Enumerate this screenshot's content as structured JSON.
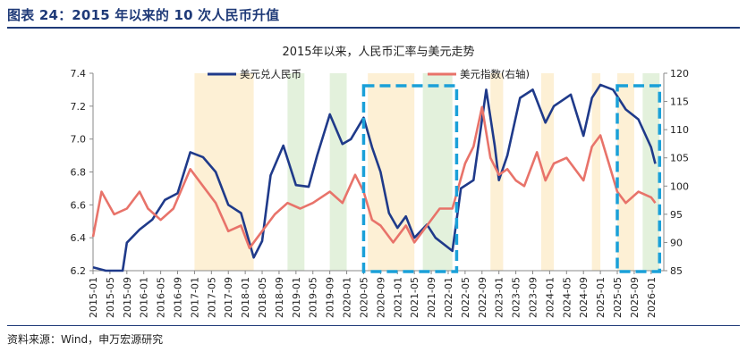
{
  "figure": {
    "title": "图表 24：2015 年以来的 10 次人民币升值",
    "source": "资料来源：Wind，申万宏源研究"
  },
  "colors": {
    "usdcny": "#1f3a8a",
    "dxy": "#e8736a",
    "band_orange": "#fdf0d5",
    "band_green": "#e3f1dc",
    "box": "#1aa0d8",
    "header": "#1f3a78"
  },
  "chart_data": {
    "type": "line",
    "title": "2015年以来，人民币汇率与美元走势",
    "x_tick_labels": [
      "2015-01",
      "2015-05",
      "2015-09",
      "2016-01",
      "2016-05",
      "2016-09",
      "2017-01",
      "2017-05",
      "2017-09",
      "2018-01",
      "2018-05",
      "2018-09",
      "2019-01",
      "2019-05",
      "2019-09",
      "2020-01",
      "2020-05",
      "2020-09",
      "2021-01",
      "2021-05",
      "2021-09",
      "2022-01",
      "2022-05",
      "2022-09",
      "2023-01",
      "2023-05",
      "2023-09",
      "2024-01",
      "2024-05",
      "2024-09",
      "2025-01",
      "2025-05",
      "2025-09",
      "2026-01"
    ],
    "left_axis": {
      "ylim": [
        6.2,
        7.4
      ],
      "ticks": [
        "6.2",
        "6.4",
        "6.6",
        "6.8",
        "7.0",
        "7.2",
        "7.4"
      ]
    },
    "right_axis": {
      "label": "右轴",
      "ylim": [
        85,
        120
      ],
      "ticks": [
        "85",
        "90",
        "95",
        "100",
        "105",
        "110",
        "115",
        "120"
      ]
    },
    "legend": {
      "placement": "top"
    },
    "series": [
      {
        "name": "美元兑人民币",
        "axis": "left",
        "points": [
          [
            "2015-01",
            6.22
          ],
          [
            "2015-04",
            6.2
          ],
          [
            "2015-08",
            6.2
          ],
          [
            "2015-09",
            6.37
          ],
          [
            "2015-12",
            6.45
          ],
          [
            "2016-03",
            6.51
          ],
          [
            "2016-06",
            6.63
          ],
          [
            "2016-09",
            6.67
          ],
          [
            "2016-12",
            6.92
          ],
          [
            "2017-03",
            6.89
          ],
          [
            "2017-06",
            6.8
          ],
          [
            "2017-09",
            6.6
          ],
          [
            "2017-12",
            6.55
          ],
          [
            "2018-03",
            6.28
          ],
          [
            "2018-05",
            6.38
          ],
          [
            "2018-07",
            6.78
          ],
          [
            "2018-10",
            6.96
          ],
          [
            "2019-01",
            6.72
          ],
          [
            "2019-04",
            6.71
          ],
          [
            "2019-06",
            6.9
          ],
          [
            "2019-09",
            7.15
          ],
          [
            "2019-12",
            6.97
          ],
          [
            "2020-02",
            7.0
          ],
          [
            "2020-05",
            7.13
          ],
          [
            "2020-07",
            6.95
          ],
          [
            "2020-09",
            6.8
          ],
          [
            "2020-11",
            6.55
          ],
          [
            "2021-01",
            6.46
          ],
          [
            "2021-03",
            6.53
          ],
          [
            "2021-05",
            6.4
          ],
          [
            "2021-08",
            6.48
          ],
          [
            "2021-10",
            6.4
          ],
          [
            "2022-02",
            6.32
          ],
          [
            "2022-04",
            6.7
          ],
          [
            "2022-07",
            6.75
          ],
          [
            "2022-10",
            7.3
          ],
          [
            "2022-12",
            6.96
          ],
          [
            "2023-01",
            6.75
          ],
          [
            "2023-03",
            6.9
          ],
          [
            "2023-06",
            7.25
          ],
          [
            "2023-09",
            7.3
          ],
          [
            "2023-12",
            7.1
          ],
          [
            "2024-02",
            7.2
          ],
          [
            "2024-06",
            7.27
          ],
          [
            "2024-09",
            7.02
          ],
          [
            "2024-11",
            7.25
          ],
          [
            "2025-01",
            7.33
          ],
          [
            "2025-04",
            7.3
          ],
          [
            "2025-07",
            7.18
          ],
          [
            "2025-10",
            7.12
          ],
          [
            "2026-01",
            6.95
          ],
          [
            "2026-02",
            6.85
          ]
        ]
      },
      {
        "name": "美元指数(右轴)",
        "axis": "right",
        "points": [
          [
            "2015-01",
            91
          ],
          [
            "2015-03",
            99
          ],
          [
            "2015-06",
            95
          ],
          [
            "2015-09",
            96
          ],
          [
            "2015-12",
            99
          ],
          [
            "2016-02",
            96
          ],
          [
            "2016-05",
            94
          ],
          [
            "2016-08",
            96
          ],
          [
            "2016-12",
            103
          ],
          [
            "2017-03",
            100
          ],
          [
            "2017-06",
            97
          ],
          [
            "2017-09",
            92
          ],
          [
            "2017-12",
            93
          ],
          [
            "2018-02",
            89
          ],
          [
            "2018-05",
            92
          ],
          [
            "2018-08",
            95
          ],
          [
            "2018-11",
            97
          ],
          [
            "2019-02",
            96
          ],
          [
            "2019-05",
            97
          ],
          [
            "2019-09",
            99
          ],
          [
            "2019-12",
            97
          ],
          [
            "2020-03",
            102
          ],
          [
            "2020-05",
            99
          ],
          [
            "2020-07",
            94
          ],
          [
            "2020-09",
            93
          ],
          [
            "2020-12",
            90
          ],
          [
            "2021-03",
            93
          ],
          [
            "2021-05",
            90
          ],
          [
            "2021-08",
            93
          ],
          [
            "2021-11",
            96
          ],
          [
            "2022-02",
            96
          ],
          [
            "2022-05",
            104
          ],
          [
            "2022-07",
            107
          ],
          [
            "2022-09",
            114
          ],
          [
            "2022-11",
            105
          ],
          [
            "2023-01",
            102
          ],
          [
            "2023-03",
            103
          ],
          [
            "2023-05",
            101
          ],
          [
            "2023-07",
            100
          ],
          [
            "2023-10",
            106
          ],
          [
            "2023-12",
            101
          ],
          [
            "2024-02",
            104
          ],
          [
            "2024-05",
            105
          ],
          [
            "2024-09",
            101
          ],
          [
            "2024-11",
            107
          ],
          [
            "2025-01",
            109
          ],
          [
            "2025-03",
            104
          ],
          [
            "2025-05",
            99
          ],
          [
            "2025-07",
            97
          ],
          [
            "2025-10",
            99
          ],
          [
            "2026-01",
            98
          ],
          [
            "2026-02",
            97
          ]
        ]
      }
    ],
    "shaded_periods": [
      {
        "start": "2017-01",
        "end": "2018-03",
        "color": "orange"
      },
      {
        "start": "2018-11",
        "end": "2019-03",
        "color": "green"
      },
      {
        "start": "2019-09",
        "end": "2020-01",
        "color": "green"
      },
      {
        "start": "2020-06",
        "end": "2021-05",
        "color": "orange"
      },
      {
        "start": "2021-07",
        "end": "2022-02",
        "color": "green"
      },
      {
        "start": "2022-11",
        "end": "2023-02",
        "color": "orange"
      },
      {
        "start": "2023-11",
        "end": "2024-02",
        "color": "orange"
      },
      {
        "start": "2024-11",
        "end": "2025-01",
        "color": "orange"
      },
      {
        "start": "2025-05",
        "end": "2025-09",
        "color": "orange"
      },
      {
        "start": "2025-11",
        "end": "2026-03",
        "color": "green"
      }
    ],
    "dashed_boxes": [
      {
        "start": "2020-05",
        "end": "2022-03"
      },
      {
        "start": "2025-05",
        "end": "2026-03"
      }
    ]
  }
}
